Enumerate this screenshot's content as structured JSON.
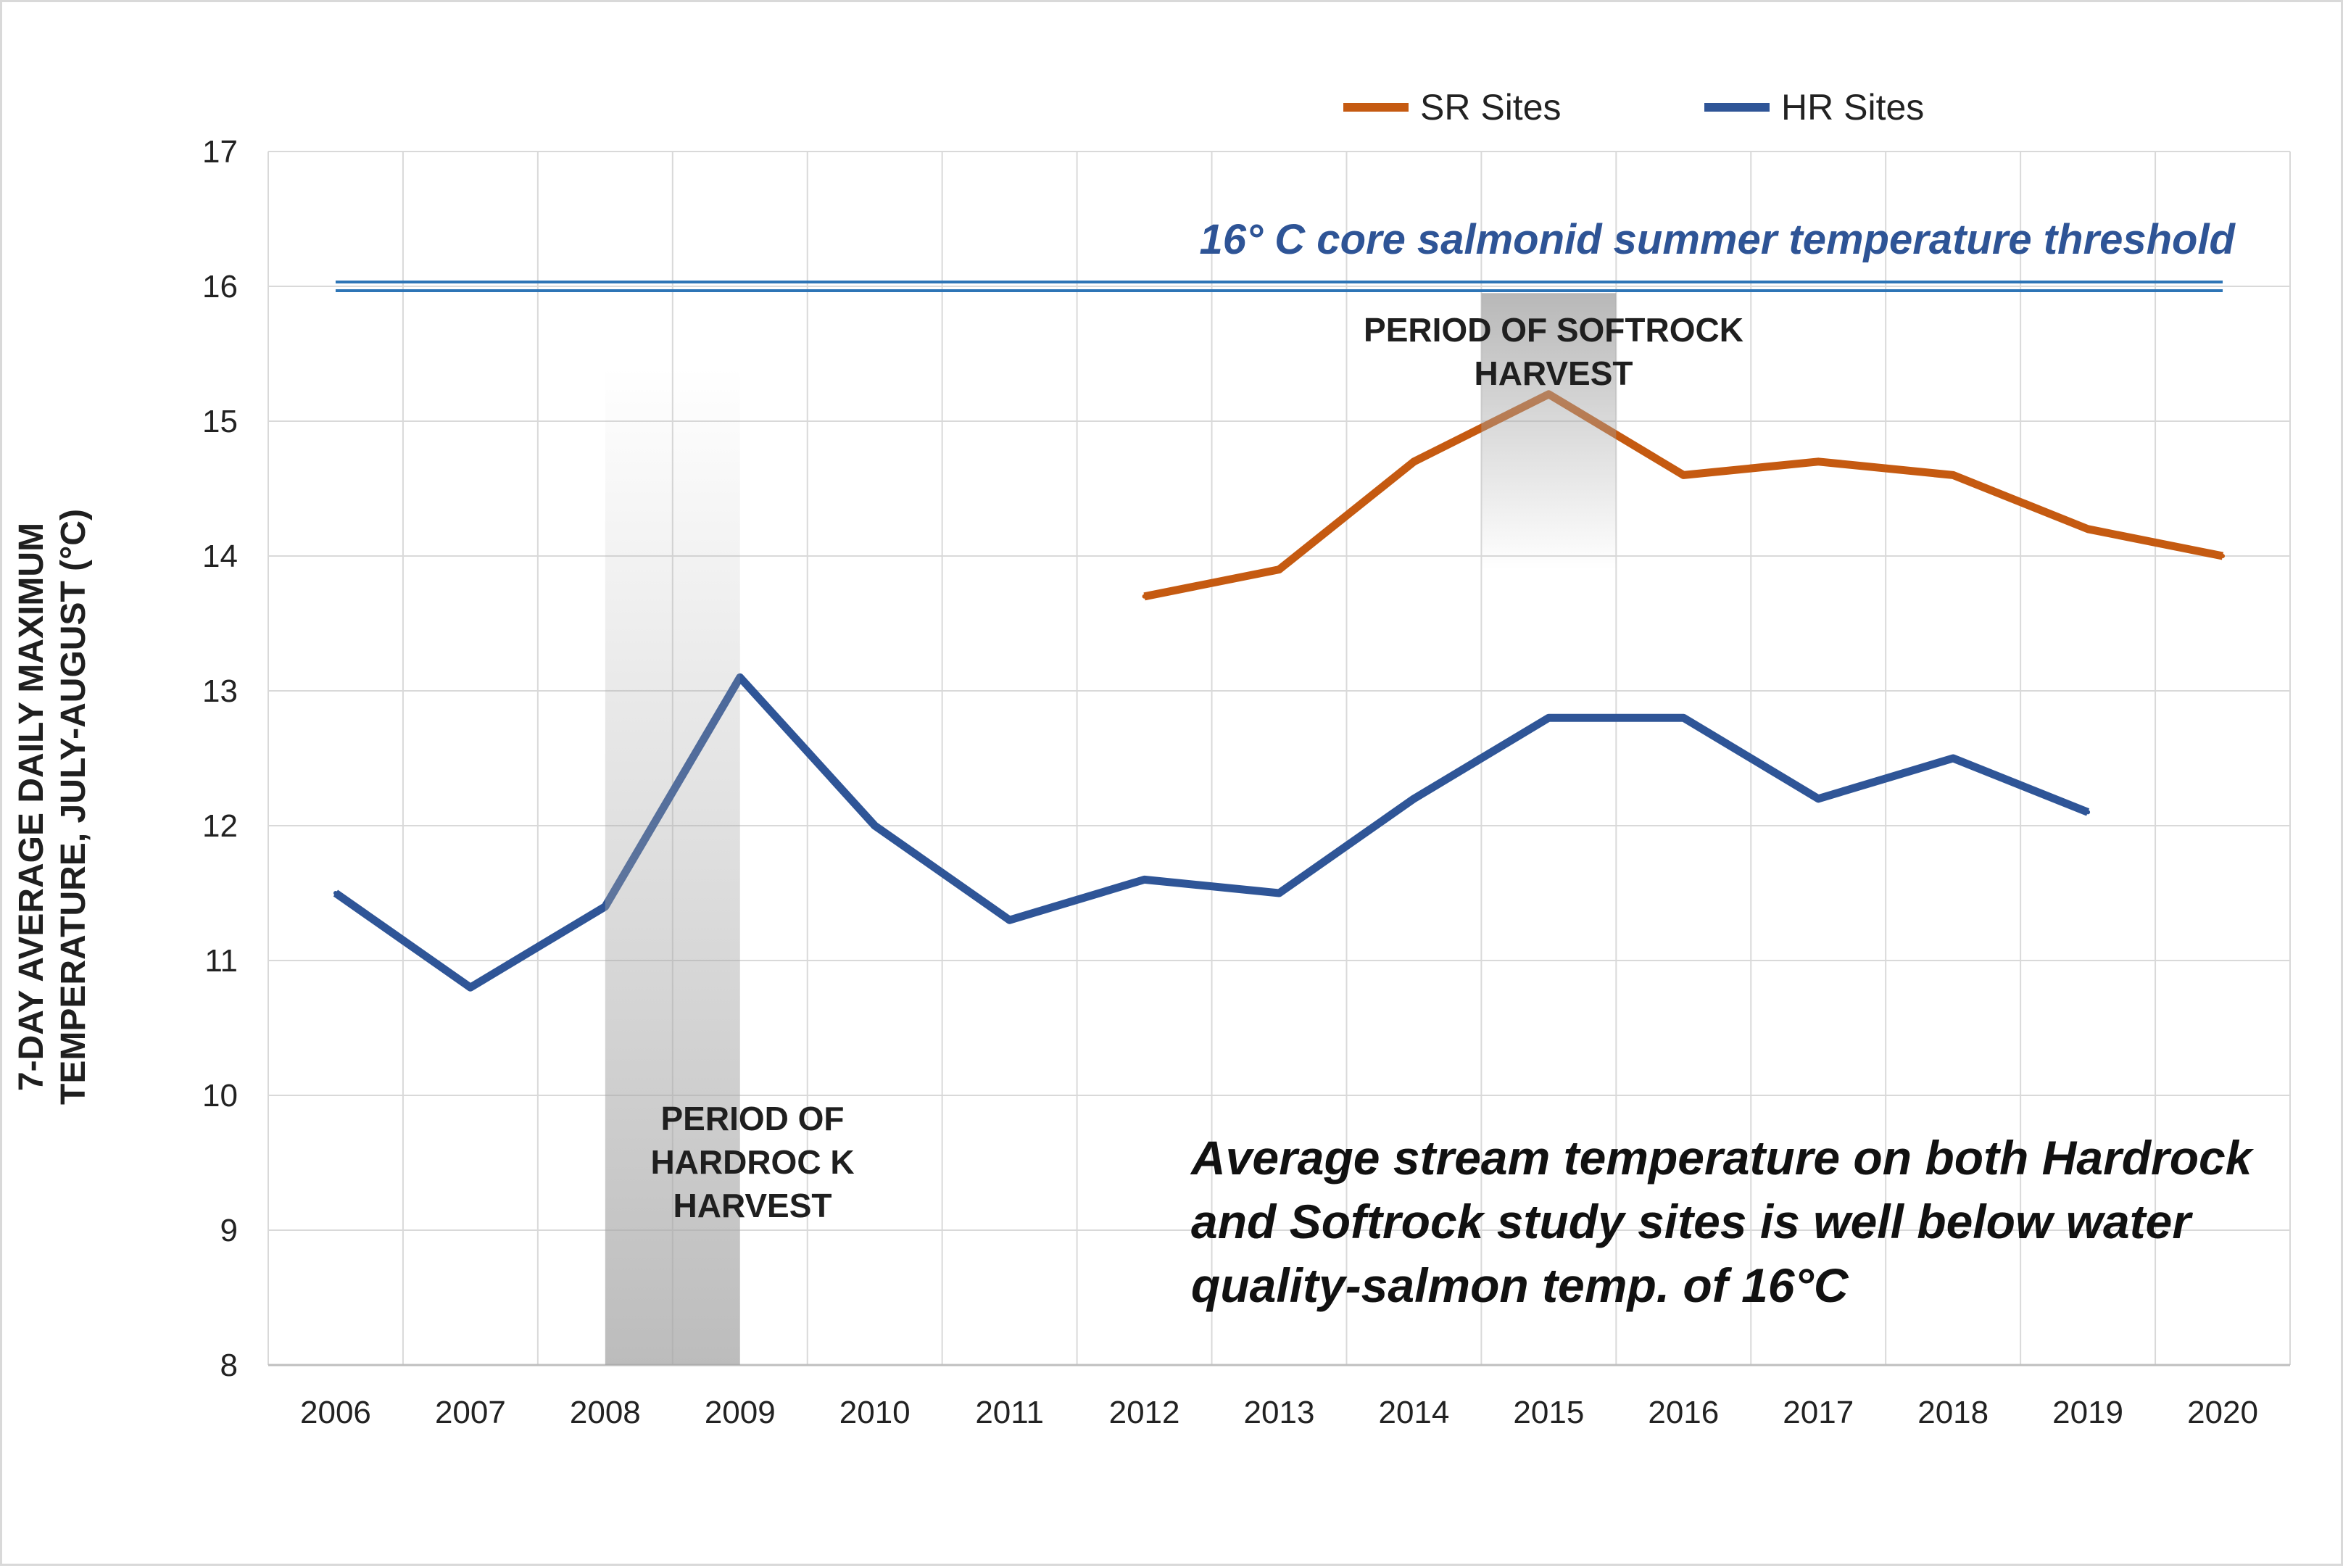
{
  "chart_data": {
    "type": "line",
    "title": "",
    "xlabel": "",
    "ylabel": "7-DAY AVERAGE DAILY MAXIMUM TEMPERATURE, JULY-AUGUST (°C)",
    "x": [
      "2006",
      "2007",
      "2008",
      "2009",
      "2010",
      "2011",
      "2012",
      "2013",
      "2014",
      "2015",
      "2016",
      "2017",
      "2018",
      "2019",
      "2020"
    ],
    "ylim": [
      8,
      17
    ],
    "yticks": [
      "8",
      "9",
      "10",
      "11",
      "12",
      "13",
      "14",
      "15",
      "16",
      "17"
    ],
    "grid": true,
    "legend_position": "top",
    "series": [
      {
        "name": "SR Sites",
        "color": "#c55a11",
        "values": [
          null,
          null,
          null,
          null,
          null,
          null,
          13.7,
          13.9,
          14.7,
          15.2,
          14.6,
          14.7,
          14.6,
          14.2,
          14.0
        ]
      },
      {
        "name": "HR Sites",
        "color": "#2f5597",
        "values": [
          11.5,
          10.8,
          11.4,
          13.1,
          12.0,
          11.3,
          11.6,
          11.5,
          12.2,
          12.8,
          12.8,
          12.2,
          12.5,
          12.1,
          null
        ]
      }
    ],
    "threshold": {
      "value": 16,
      "color": "#2e75b6",
      "label": "16° C core salmonid summer temperature threshold"
    },
    "periods": [
      {
        "from": "2008",
        "to": "2009",
        "label": "PERIOD OF HARDROC K HARVEST",
        "y_top": 15.4,
        "y_bottom": 8
      },
      {
        "from": "2014.5",
        "to": "2015.5",
        "label": "PERIOD OF SOFTROCK HARVEST",
        "y_top": 15.95,
        "y_bottom": 13.9
      }
    ],
    "annotation": "Average stream temperature on both Hardrock and Softrock study sites is well below water quality-salmon temp. of 16°C"
  }
}
